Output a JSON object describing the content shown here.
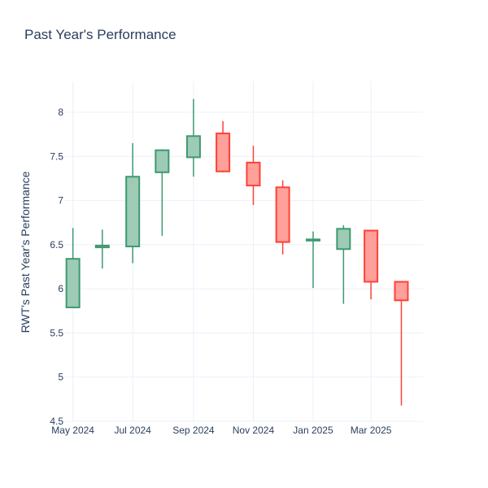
{
  "chart_data": {
    "type": "candlestick",
    "title": "Past Year's Performance",
    "xlabel": "",
    "ylabel": "RWT's Past Year's Performance",
    "ylim": [
      4.5,
      8.35
    ],
    "yticks": [
      4.5,
      5,
      5.5,
      6,
      6.5,
      7,
      7.5,
      8
    ],
    "ytick_labels": [
      "4.5",
      "5",
      "5.5",
      "6",
      "6.5",
      "7",
      "7.5",
      "8"
    ],
    "xticks": [
      {
        "date": "2024-05-01",
        "label": "May 2024"
      },
      {
        "date": "2024-07-01",
        "label": "Jul 2024"
      },
      {
        "date": "2024-09-01",
        "label": "Sep 2024"
      },
      {
        "date": "2024-11-01",
        "label": "Nov 2024"
      },
      {
        "date": "2025-01-01",
        "label": "Jan 2025"
      },
      {
        "date": "2025-03-01",
        "label": "Mar 2025"
      }
    ],
    "xlim": [
      "2024-04-23",
      "2025-04-23"
    ],
    "increasing_color": "#3d9970",
    "decreasing_color": "#ff4136",
    "grid": true,
    "candles": [
      {
        "date": "2024-05-01",
        "open": 5.79,
        "high": 6.69,
        "low": 5.79,
        "close": 6.34
      },
      {
        "date": "2024-05-31",
        "open": 6.47,
        "high": 6.67,
        "low": 6.23,
        "close": 6.49
      },
      {
        "date": "2024-07-01",
        "open": 6.48,
        "high": 7.65,
        "low": 6.29,
        "close": 7.27
      },
      {
        "date": "2024-07-31",
        "open": 7.32,
        "high": 7.58,
        "low": 6.6,
        "close": 7.57
      },
      {
        "date": "2024-09-01",
        "open": 7.49,
        "high": 8.15,
        "low": 7.27,
        "close": 7.73
      },
      {
        "date": "2024-10-01",
        "open": 7.76,
        "high": 7.9,
        "low": 7.32,
        "close": 7.33
      },
      {
        "date": "2024-11-01",
        "open": 7.43,
        "high": 7.62,
        "low": 6.95,
        "close": 7.17
      },
      {
        "date": "2024-12-01",
        "open": 7.15,
        "high": 7.23,
        "low": 6.39,
        "close": 6.53
      },
      {
        "date": "2025-01-01",
        "open": 6.55,
        "high": 6.65,
        "low": 6.01,
        "close": 6.56
      },
      {
        "date": "2025-02-01",
        "open": 6.45,
        "high": 6.72,
        "low": 5.83,
        "close": 6.68
      },
      {
        "date": "2025-03-01",
        "open": 6.66,
        "high": 6.66,
        "low": 5.88,
        "close": 6.08
      },
      {
        "date": "2025-04-01",
        "open": 6.08,
        "high": 6.08,
        "low": 4.68,
        "close": 5.87
      }
    ]
  }
}
